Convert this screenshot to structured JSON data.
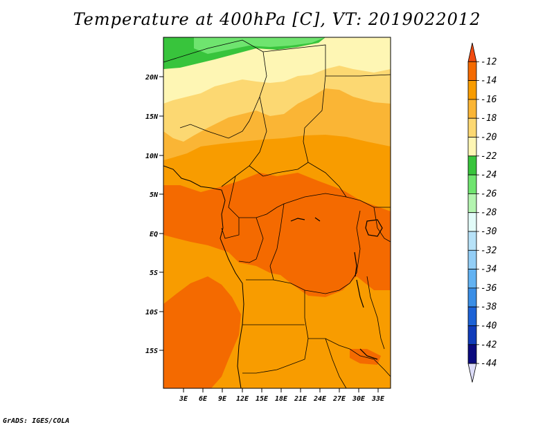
{
  "title": "Temperature at 400hPa [C], VT: 2019022012",
  "credit": "GrADS: IGES/COLA",
  "map": {
    "lat_labels": [
      "20N",
      "15N",
      "10N",
      "5N",
      "EQ",
      "5S",
      "10S",
      "15S"
    ],
    "lon_labels": [
      "3E",
      "6E",
      "9E",
      "12E",
      "15E",
      "18E",
      "21E",
      "24E",
      "27E",
      "30E",
      "33E"
    ]
  },
  "legend": {
    "levels": [
      "-12",
      "-14",
      "-16",
      "-18",
      "-20",
      "-22",
      "-24",
      "-26",
      "-28",
      "-30",
      "-32",
      "-34",
      "-36",
      "-38",
      "-40",
      "-42",
      "-44"
    ],
    "colors": [
      "#f04a10",
      "#f46a00",
      "#f89c00",
      "#fab535",
      "#fcd872",
      "#fef6b4",
      "#38c43c",
      "#6fe46f",
      "#b4f4b0",
      "#e2fbf8",
      "#b7e2f8",
      "#93cef6",
      "#62b2f2",
      "#3a8ee6",
      "#1c62d6",
      "#103cba",
      "#0a0a7e",
      "#dcdcf8"
    ]
  }
}
